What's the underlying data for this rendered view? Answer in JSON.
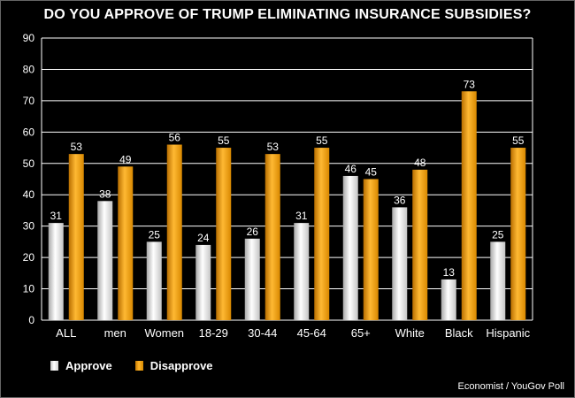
{
  "chart_data": {
    "type": "bar",
    "title": "DO YOU APPROVE OF TRUMP ELIMINATING INSURANCE SUBSIDIES?",
    "categories": [
      "ALL",
      "men",
      "Women",
      "18-29",
      "30-44",
      "45-64",
      "65+",
      "White",
      "Black",
      "Hispanic"
    ],
    "series": [
      {
        "name": "Approve",
        "values": [
          31,
          38,
          25,
          24,
          26,
          31,
          46,
          36,
          13,
          25
        ],
        "color": "#ffffff"
      },
      {
        "name": "Disapprove",
        "values": [
          53,
          49,
          56,
          55,
          53,
          55,
          45,
          48,
          73,
          55
        ],
        "color": "#f5a000"
      }
    ],
    "ylim": [
      0,
      90
    ],
    "yticks": [
      0,
      10,
      20,
      30,
      40,
      50,
      60,
      70,
      80,
      90
    ],
    "grid": true,
    "legend_position": "bottom-left",
    "source": "Economist / YouGov Poll"
  }
}
